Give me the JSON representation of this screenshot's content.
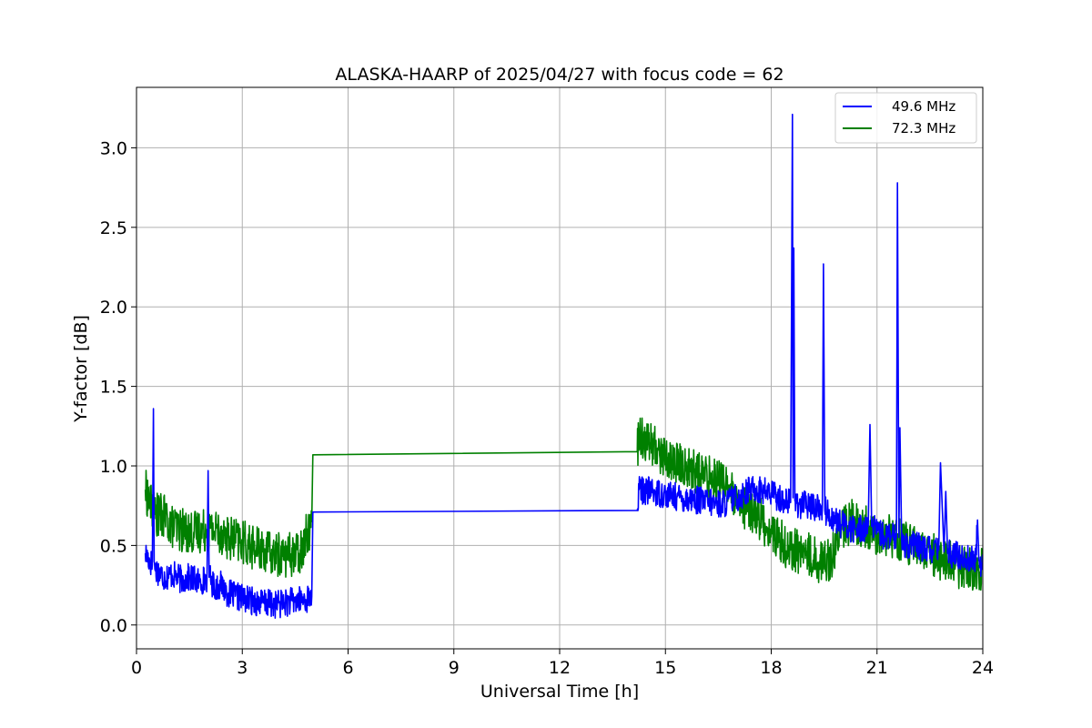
{
  "chart_data": {
    "type": "line",
    "title": "ALASKA-HAARP of 2025/04/27 with focus code = 62",
    "xlabel": "Universal Time [h]",
    "ylabel": "Y-factor [dB]",
    "xlim": [
      0,
      24
    ],
    "ylim": [
      -0.15,
      3.38
    ],
    "xticks": [
      0,
      3,
      6,
      9,
      12,
      15,
      18,
      21,
      24
    ],
    "xtick_labels": [
      "0",
      "3",
      "6",
      "9",
      "12",
      "15",
      "18",
      "21",
      "24"
    ],
    "yticks": [
      0.0,
      0.5,
      1.0,
      1.5,
      2.0,
      2.5,
      3.0
    ],
    "ytick_labels": [
      "0.0",
      "0.5",
      "1.0",
      "1.5",
      "2.0",
      "2.5",
      "3.0"
    ],
    "grid": true,
    "legend_position": "top-right",
    "series": [
      {
        "name": "49.6 MHz",
        "color": "#0000ff",
        "x": [
          0.25,
          0.45,
          0.48,
          0.5,
          0.52,
          0.6,
          0.8,
          1.0,
          1.3,
          1.5,
          1.8,
          2.0,
          2.03,
          2.06,
          2.2,
          2.4,
          2.6,
          2.8,
          3.0,
          3.3,
          3.6,
          3.9,
          4.2,
          4.5,
          4.8,
          4.97,
          5.0,
          14.2,
          14.25,
          14.6,
          15.0,
          15.4,
          15.8,
          16.2,
          16.6,
          17.0,
          17.5,
          18.0,
          18.4,
          18.55,
          18.58,
          18.6,
          18.62,
          18.64,
          18.67,
          18.7,
          18.8,
          19.0,
          19.3,
          19.45,
          19.48,
          19.52,
          19.7,
          20.0,
          20.4,
          20.75,
          20.8,
          20.85,
          21.0,
          21.2,
          21.4,
          21.55,
          21.58,
          21.62,
          21.65,
          21.7,
          22.0,
          22.4,
          22.7,
          22.75,
          22.8,
          22.9,
          22.95,
          23.0,
          23.4,
          23.8,
          23.85,
          23.9,
          24.0
        ],
        "y": [
          0.45,
          0.38,
          1.36,
          0.4,
          0.35,
          0.34,
          0.3,
          0.32,
          0.28,
          0.3,
          0.27,
          0.3,
          0.97,
          0.3,
          0.24,
          0.25,
          0.2,
          0.18,
          0.17,
          0.15,
          0.14,
          0.13,
          0.14,
          0.15,
          0.16,
          0.18,
          0.71,
          0.72,
          0.85,
          0.84,
          0.82,
          0.8,
          0.79,
          0.77,
          0.76,
          0.8,
          0.86,
          0.83,
          0.78,
          0.77,
          2.2,
          3.21,
          0.8,
          2.37,
          0.78,
          0.77,
          0.76,
          0.75,
          0.74,
          0.74,
          2.27,
          0.72,
          0.68,
          0.63,
          0.6,
          0.62,
          1.26,
          0.62,
          0.58,
          0.56,
          0.55,
          0.55,
          2.78,
          0.55,
          1.24,
          0.52,
          0.5,
          0.48,
          0.47,
          0.47,
          1.02,
          0.46,
          0.84,
          0.45,
          0.43,
          0.4,
          0.66,
          0.4,
          0.38
        ]
      },
      {
        "name": "72.3 MHz",
        "color": "#008000",
        "x": [
          0.25,
          0.5,
          0.8,
          1.0,
          1.5,
          2.0,
          2.3,
          2.6,
          3.0,
          3.4,
          3.8,
          4.2,
          4.6,
          4.8,
          4.97,
          5.0,
          14.2,
          14.25,
          14.5,
          14.8,
          15.0,
          15.5,
          16.0,
          16.5,
          16.8,
          17.0,
          17.5,
          18.0,
          18.5,
          19.0,
          19.4,
          19.7,
          20.0,
          20.3,
          20.6,
          21.0,
          21.5,
          22.0,
          22.5,
          23.0,
          23.5,
          24.0
        ],
        "y": [
          0.85,
          0.7,
          0.68,
          0.62,
          0.58,
          0.6,
          0.6,
          0.55,
          0.52,
          0.48,
          0.45,
          0.44,
          0.45,
          0.55,
          0.65,
          1.07,
          1.09,
          1.22,
          1.15,
          1.1,
          1.05,
          1.0,
          0.95,
          0.92,
          0.88,
          0.75,
          0.72,
          0.58,
          0.48,
          0.45,
          0.4,
          0.42,
          0.6,
          0.66,
          0.62,
          0.58,
          0.56,
          0.5,
          0.45,
          0.4,
          0.35,
          0.36
        ]
      }
    ]
  }
}
